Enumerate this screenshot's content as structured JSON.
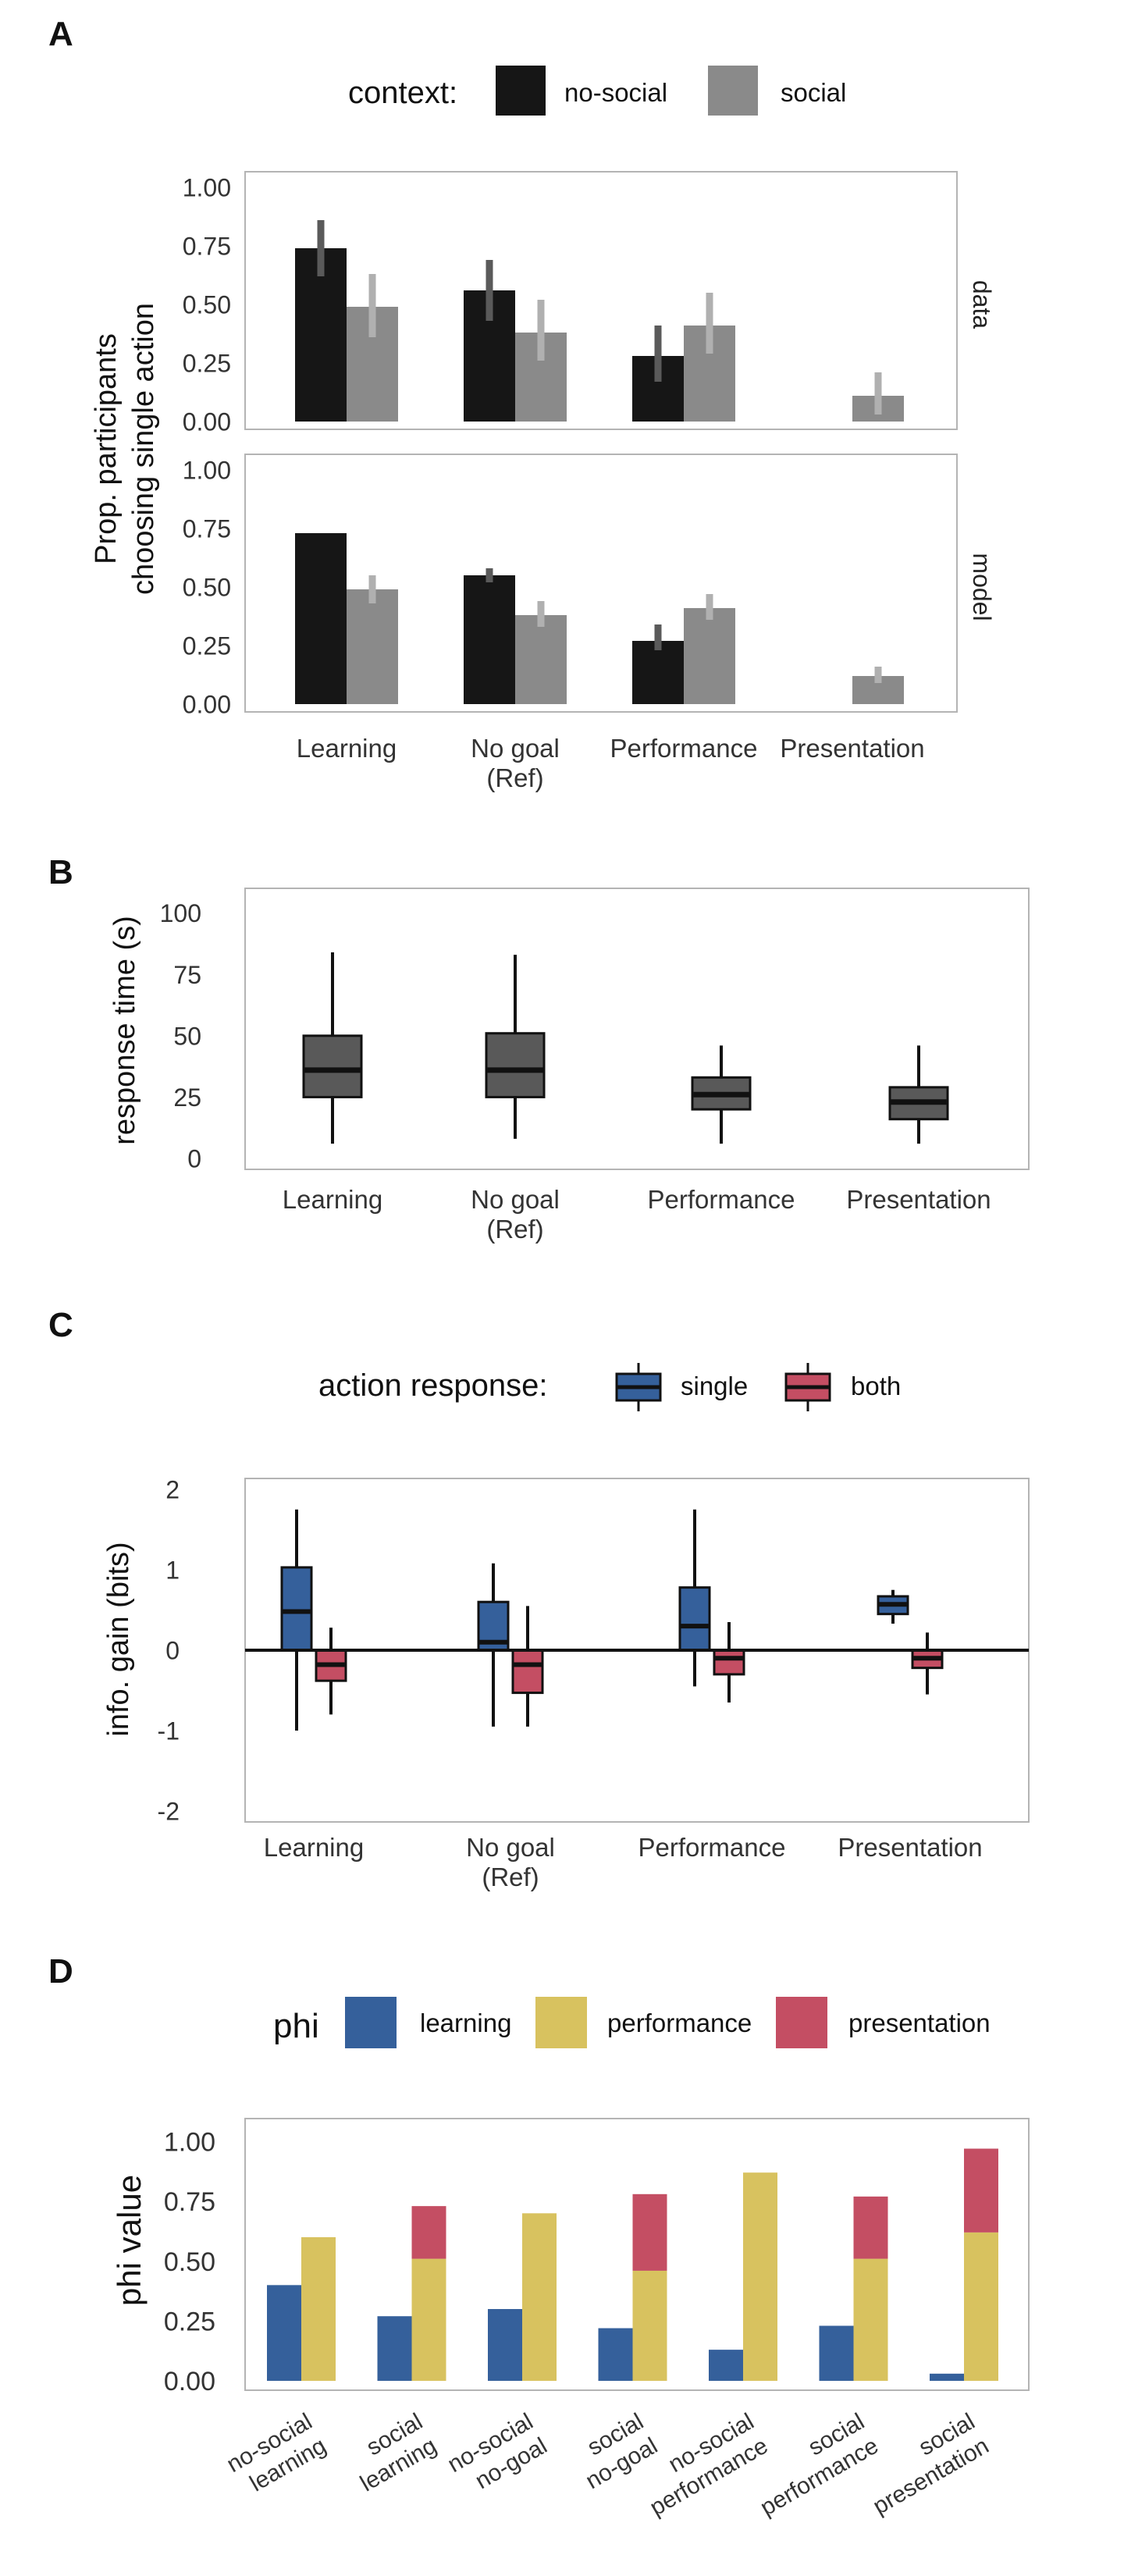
{
  "colors": {
    "no_social": "#161616",
    "social": "#8a8a8a",
    "errorbar_no_social": "#5a5a5a",
    "errorbar_social": "#b0b0b0",
    "rt_box": "#595959",
    "single": "#35609b",
    "both": "#c44e63",
    "phi_learning": "#35609b",
    "phi_performance": "#d8c25f",
    "phi_presentation": "#c44e63",
    "frame": "#b4b4b4"
  },
  "panels": {
    "A": {
      "letter": "A",
      "legend_title": "context:",
      "legend_items": [
        "no-social",
        "social"
      ]
    },
    "B": {
      "letter": "B"
    },
    "C": {
      "letter": "C",
      "legend_title": "action response:",
      "legend_items": [
        "single",
        "both"
      ]
    },
    "D": {
      "letter": "D",
      "legend_title": "phi",
      "legend_items": [
        "learning",
        "performance",
        "presentation"
      ]
    }
  },
  "chart_data": [
    {
      "panel": "A",
      "type": "bar",
      "ylabel": [
        "Prop. participants",
        "choosing single action"
      ],
      "categories": [
        "Learning",
        "No goal (Ref)",
        "Performance",
        "Presentation"
      ],
      "category_labels": [
        [
          "Learning"
        ],
        [
          "No goal",
          "(Ref)"
        ],
        [
          "Performance"
        ],
        [
          "Presentation"
        ]
      ],
      "ylim": [
        0,
        1.0
      ],
      "yticks": [
        "0.00",
        "0.25",
        "0.50",
        "0.75",
        "1.00"
      ],
      "grid": false,
      "facets": [
        {
          "label": "data",
          "series": [
            {
              "name": "no-social",
              "values": [
                0.74,
                0.56,
                0.28,
                null
              ],
              "err_low": [
                0.62,
                0.43,
                0.17,
                null
              ],
              "err_high": [
                0.86,
                0.69,
                0.41,
                null
              ]
            },
            {
              "name": "social",
              "values": [
                0.49,
                0.38,
                0.41,
                0.11
              ],
              "err_low": [
                0.36,
                0.26,
                0.29,
                0.03
              ],
              "err_high": [
                0.63,
                0.52,
                0.55,
                0.21
              ]
            }
          ]
        },
        {
          "label": "model",
          "series": [
            {
              "name": "no-social",
              "values": [
                0.73,
                0.55,
                0.27,
                null
              ],
              "err_low": [
                null,
                0.52,
                0.23,
                null
              ],
              "err_high": [
                null,
                0.58,
                0.34,
                null
              ]
            },
            {
              "name": "social",
              "values": [
                0.49,
                0.38,
                0.41,
                0.12
              ],
              "err_low": [
                0.43,
                0.33,
                0.36,
                0.09
              ],
              "err_high": [
                0.55,
                0.44,
                0.47,
                0.16
              ]
            }
          ]
        }
      ]
    },
    {
      "panel": "B",
      "type": "box",
      "ylabel": "response time (s)",
      "categories": [
        "Learning",
        "No goal (Ref)",
        "Performance",
        "Presentation"
      ],
      "category_labels": [
        [
          "Learning"
        ],
        [
          "No goal",
          "(Ref)"
        ],
        [
          "Performance"
        ],
        [
          "Presentation"
        ]
      ],
      "ylim": [
        0,
        105
      ],
      "yticks": [
        "0",
        "25",
        "50",
        "75",
        "100"
      ],
      "grid": false,
      "boxes": [
        {
          "min": 6,
          "q1": 25,
          "median": 36,
          "q3": 50,
          "max": 84
        },
        {
          "min": 8,
          "q1": 25,
          "median": 36,
          "q3": 51,
          "max": 83
        },
        {
          "min": 6,
          "q1": 20,
          "median": 26,
          "q3": 33,
          "max": 46
        },
        {
          "min": 6,
          "q1": 16,
          "median": 23,
          "q3": 29,
          "max": 46
        }
      ]
    },
    {
      "panel": "C",
      "type": "box",
      "ylabel": "info. gain (bits)",
      "categories": [
        "Learning",
        "No goal (Ref)",
        "Performance",
        "Presentation"
      ],
      "category_labels": [
        [
          "Learning"
        ],
        [
          "No goal",
          "(Ref)"
        ],
        [
          "Performance"
        ],
        [
          "Presentation"
        ]
      ],
      "ylim": [
        -2.15,
        2.15
      ],
      "yticks": [
        "-2",
        "-1",
        "0",
        "1",
        "2"
      ],
      "reference_line": 0,
      "grid": false,
      "series": [
        {
          "name": "single",
          "boxes": [
            {
              "min": -1.0,
              "q1": 0.0,
              "median": 0.48,
              "q3": 1.03,
              "max": 1.75
            },
            {
              "min": -0.95,
              "q1": 0.0,
              "median": 0.1,
              "q3": 0.6,
              "max": 1.08
            },
            {
              "min": -0.45,
              "q1": 0.0,
              "median": 0.3,
              "q3": 0.78,
              "max": 1.75
            },
            {
              "min": 0.33,
              "q1": 0.45,
              "median": 0.57,
              "q3": 0.67,
              "max": 0.75
            }
          ]
        },
        {
          "name": "both",
          "boxes": [
            {
              "min": -0.8,
              "q1": -0.38,
              "median": -0.18,
              "q3": 0.0,
              "max": 0.28
            },
            {
              "min": -0.95,
              "q1": -0.53,
              "median": -0.18,
              "q3": 0.0,
              "max": 0.55
            },
            {
              "min": -0.65,
              "q1": -0.3,
              "median": -0.1,
              "q3": 0.0,
              "max": 0.35
            },
            {
              "min": -0.55,
              "q1": -0.22,
              "median": -0.1,
              "q3": 0.0,
              "max": 0.22
            }
          ]
        }
      ]
    },
    {
      "panel": "D",
      "type": "bar",
      "ylabel": "phi value",
      "categories": [
        "no-social learning",
        "social learning",
        "no-social no-goal",
        "social no-goal",
        "no-social performance",
        "social performance",
        "social presentation"
      ],
      "category_labels": [
        [
          "no-social",
          "learning"
        ],
        [
          "social",
          "learning"
        ],
        [
          "no-social",
          "no-goal"
        ],
        [
          "social",
          "no-goal"
        ],
        [
          "no-social",
          "performance"
        ],
        [
          "social",
          "performance"
        ],
        [
          "social",
          "presentation"
        ]
      ],
      "ylim": [
        0,
        1.05
      ],
      "yticks": [
        "0.00",
        "0.25",
        "0.50",
        "0.75",
        "1.00"
      ],
      "grid": false,
      "series": [
        {
          "name": "learning",
          "values": [
            0.4,
            0.27,
            0.3,
            0.22,
            0.13,
            0.23,
            0.03
          ]
        },
        {
          "name": "performance",
          "values": [
            0.6,
            0.51,
            0.7,
            0.46,
            0.87,
            0.51,
            0.62
          ]
        },
        {
          "name": "presentation",
          "values": [
            0,
            0.22,
            0,
            0.32,
            0,
            0.26,
            0.35
          ]
        }
      ]
    }
  ]
}
